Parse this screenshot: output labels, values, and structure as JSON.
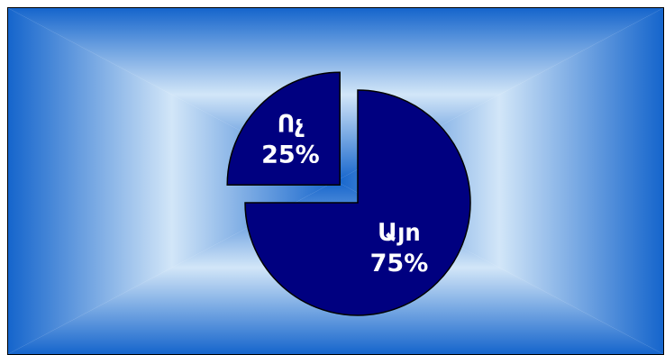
{
  "chart_data": {
    "type": "pie",
    "exploded": true,
    "start_angle_deg": 0,
    "direction": "clockwise",
    "slices": [
      {
        "label": "Այո",
        "value": 75,
        "value_label": "75%"
      },
      {
        "label": "Ոչ",
        "value": 25,
        "value_label": "25%"
      }
    ],
    "legend": "none"
  },
  "colors": {
    "slice_fill": "#000080",
    "slice_stroke": "#000000",
    "label_text": "#ffffff",
    "background_edge": "#1565cc",
    "background_center": "#d2e6f8"
  }
}
